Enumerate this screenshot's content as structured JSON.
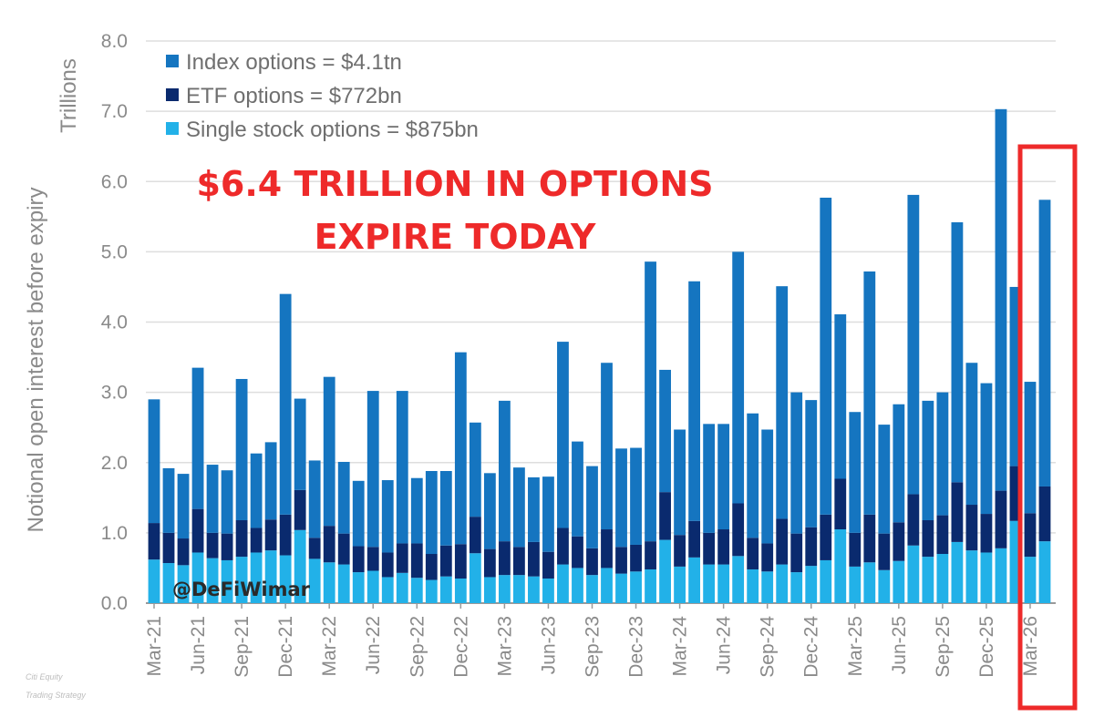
{
  "chart_data": {
    "type": "stacked-bar",
    "ylabel": "Notional open interest before expiry",
    "yunits": "Trillions",
    "ylim": [
      0,
      8
    ],
    "yticks": [
      "0.0",
      "1.0",
      "2.0",
      "3.0",
      "4.0",
      "5.0",
      "6.0",
      "7.0",
      "8.0"
    ],
    "x_tick_labels": [
      "Mar-21",
      "Jun-21",
      "Sep-21",
      "Dec-21",
      "Mar-22",
      "Jun-22",
      "Sep-22",
      "Dec-22",
      "Mar-23",
      "Jun-23",
      "Sep-23",
      "Dec-23",
      "Mar-24",
      "Jun-24",
      "Sep-24",
      "Dec-24",
      "Mar-25",
      "Jun-25",
      "Sep-25",
      "Dec-25",
      "Mar-26"
    ],
    "bars_per_tick": 3,
    "series": [
      {
        "name": "Single stock options",
        "legend": "Single stock options = $875bn",
        "color": "#22b1e8",
        "values": [
          0.62,
          0.57,
          0.54,
          0.72,
          0.64,
          0.61,
          0.66,
          0.72,
          0.75,
          0.68,
          1.04,
          0.63,
          0.58,
          0.55,
          0.44,
          0.46,
          0.37,
          0.43,
          0.36,
          0.33,
          0.38,
          0.35,
          0.71,
          0.37,
          0.4,
          0.4,
          0.38,
          0.35,
          0.55,
          0.5,
          0.4,
          0.5,
          0.42,
          0.45,
          0.48,
          0.9,
          0.52,
          0.65,
          0.55,
          0.55,
          0.67,
          0.48,
          0.45,
          0.55,
          0.44,
          0.53,
          0.61,
          1.05,
          0.52,
          0.58,
          0.47,
          0.6,
          0.82,
          0.66,
          0.7,
          0.87,
          0.75,
          0.72,
          0.78,
          1.17,
          0.66,
          0.88
        ]
      },
      {
        "name": "ETF options",
        "legend": "ETF options = $772bn",
        "color": "#0a2a6e",
        "values": [
          0.52,
          0.43,
          0.38,
          0.62,
          0.36,
          0.38,
          0.52,
          0.35,
          0.44,
          0.58,
          0.57,
          0.3,
          0.52,
          0.44,
          0.37,
          0.34,
          0.35,
          0.42,
          0.49,
          0.37,
          0.44,
          0.49,
          0.52,
          0.4,
          0.48,
          0.4,
          0.49,
          0.38,
          0.52,
          0.45,
          0.38,
          0.55,
          0.38,
          0.38,
          0.4,
          0.68,
          0.45,
          0.52,
          0.45,
          0.5,
          0.75,
          0.45,
          0.4,
          0.65,
          0.55,
          0.55,
          0.65,
          0.72,
          0.48,
          0.68,
          0.52,
          0.55,
          0.73,
          0.52,
          0.55,
          0.85,
          0.65,
          0.55,
          0.82,
          0.78,
          0.62,
          0.78
        ]
      },
      {
        "name": "Index options",
        "legend": "Index options = $4.1tn",
        "color": "#1575c0",
        "values": [
          1.76,
          0.92,
          0.92,
          2.01,
          0.97,
          0.9,
          2.01,
          1.06,
          1.1,
          3.14,
          1.3,
          1.1,
          2.12,
          1.02,
          0.93,
          2.22,
          1.03,
          2.17,
          0.93,
          1.18,
          1.06,
          2.73,
          1.34,
          1.08,
          2.0,
          1.13,
          0.92,
          1.07,
          2.65,
          1.35,
          1.17,
          2.37,
          1.4,
          1.38,
          3.98,
          1.74,
          1.5,
          3.41,
          1.55,
          1.5,
          3.58,
          1.77,
          1.62,
          3.31,
          2.01,
          1.81,
          4.51,
          2.34,
          1.72,
          3.46,
          1.55,
          1.68,
          4.26,
          1.7,
          1.75,
          3.7,
          2.02,
          1.86,
          5.43,
          2.55,
          1.87,
          4.08
        ]
      }
    ],
    "highlight_last_bars": 3
  },
  "title_block": {
    "line1": "$6.4 TRILLION IN OPTIONS",
    "line2": "EXPIRE TODAY"
  },
  "watermark": "@DeFiWimar",
  "source_note": {
    "line1": "Citi Equity",
    "line2": "Trading Strategy"
  },
  "colors": {
    "highlight_box": "#ee2a2a",
    "headline": "#ee2a2a",
    "grid": "#dedede",
    "axis": "#9a9a9a"
  }
}
